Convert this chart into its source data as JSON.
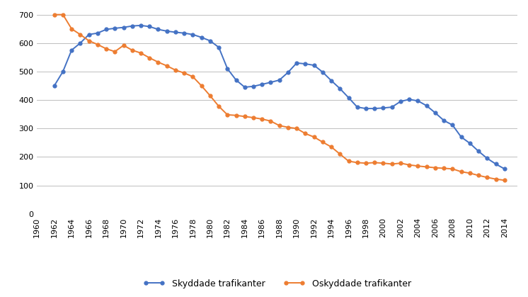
{
  "skyddade": {
    "years": [
      1962,
      1963,
      1964,
      1965,
      1966,
      1967,
      1968,
      1969,
      1970,
      1971,
      1972,
      1973,
      1974,
      1975,
      1976,
      1977,
      1978,
      1979,
      1980,
      1981,
      1982,
      1983,
      1984,
      1985,
      1986,
      1987,
      1988,
      1989,
      1990,
      1991,
      1992,
      1993,
      1994,
      1995,
      1996,
      1997,
      1998,
      1999,
      2000,
      2001,
      2002,
      2003,
      2004,
      2005,
      2006,
      2007,
      2008,
      2009,
      2010,
      2011,
      2012,
      2013,
      2014
    ],
    "values": [
      450,
      500,
      575,
      600,
      630,
      635,
      648,
      652,
      655,
      660,
      662,
      658,
      648,
      642,
      638,
      635,
      630,
      620,
      608,
      585,
      510,
      470,
      445,
      448,
      455,
      462,
      470,
      497,
      530,
      527,
      522,
      498,
      468,
      440,
      408,
      375,
      370,
      370,
      372,
      375,
      395,
      402,
      397,
      380,
      355,
      328,
      312,
      270,
      248,
      220,
      195,
      175,
      158
    ]
  },
  "oskyddade": {
    "years": [
      1962,
      1963,
      1964,
      1965,
      1966,
      1967,
      1968,
      1969,
      1970,
      1971,
      1972,
      1973,
      1974,
      1975,
      1976,
      1977,
      1978,
      1979,
      1980,
      1981,
      1982,
      1983,
      1984,
      1985,
      1986,
      1987,
      1988,
      1989,
      1990,
      1991,
      1992,
      1993,
      1994,
      1995,
      1996,
      1997,
      1998,
      1999,
      2000,
      2001,
      2002,
      2003,
      2004,
      2005,
      2006,
      2007,
      2008,
      2009,
      2010,
      2011,
      2012,
      2013,
      2014
    ],
    "values": [
      700,
      700,
      650,
      630,
      608,
      595,
      580,
      570,
      592,
      575,
      565,
      548,
      533,
      520,
      505,
      495,
      482,
      450,
      415,
      378,
      348,
      346,
      342,
      338,
      333,
      326,
      310,
      304,
      300,
      282,
      270,
      252,
      235,
      210,
      185,
      180,
      178,
      180,
      178,
      175,
      178,
      172,
      168,
      165,
      162,
      160,
      158,
      148,
      143,
      135,
      128,
      122,
      118
    ]
  },
  "skyddade_color": "#4472C4",
  "oskyddade_color": "#ED7D31",
  "background_color": "#ffffff",
  "grid_color": "#bfbfbf",
  "yticks": [
    0,
    100,
    200,
    300,
    400,
    500,
    600,
    700
  ],
  "xticks": [
    1960,
    1962,
    1964,
    1966,
    1968,
    1970,
    1972,
    1974,
    1976,
    1978,
    1980,
    1982,
    1984,
    1986,
    1988,
    1990,
    1992,
    1994,
    1996,
    1998,
    2000,
    2002,
    2004,
    2006,
    2008,
    2010,
    2012,
    2014
  ],
  "ylim": [
    0,
    720
  ],
  "xlim": [
    1960,
    2015.5
  ],
  "legend_skyddade": "Skyddade trafikanter",
  "legend_oskyddade": "Oskyddade trafikanter",
  "marker": "o",
  "markersize": 3.5,
  "linewidth": 1.4,
  "tick_fontsize": 8,
  "legend_fontsize": 9
}
